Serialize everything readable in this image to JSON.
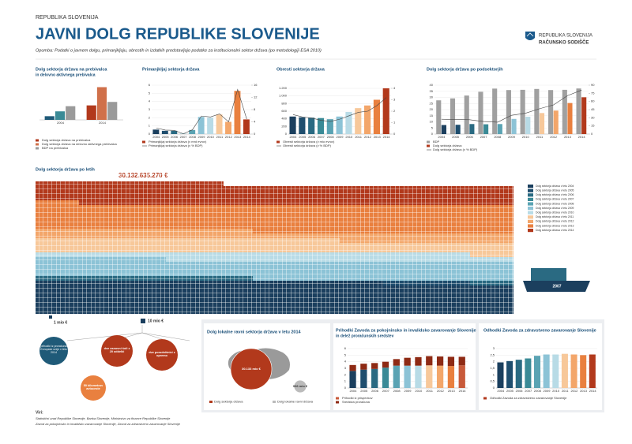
{
  "header": {
    "kicker": "REPUBLIKA SLOVENIJA",
    "title": "JAVNI DOLG REPUBLIKE SLOVENIJE",
    "note": "Opomba: Podatki o javnem dolgu, primanjkljaju, obrestih in izdatkih predstavljajo podatke za institucionalni sektor država (po metodologiji ESA 2010)",
    "org1": "REPUBLIKA SLOVENIJA",
    "org2": "RAČUNSKO SODIŠČE"
  },
  "chart_data": [
    {
      "type": "bar",
      "title": "Dolg sektorja država na prebivalca",
      "subtitle": "in delovno aktivnega prebivalca",
      "categories": [
        "2004",
        "2014"
      ],
      "ylim": [
        0,
        35000
      ],
      "series": [
        {
          "name": "Dolg sektorja država na prebivalca",
          "colors": [
            "#1f5a78",
            "#b2391c"
          ],
          "values": [
            3700,
            14600
          ]
        },
        {
          "name": "Dolg sektorja država na delovno aktivnega prebivalca",
          "colors": [
            "#3a8a96",
            "#d0704a"
          ],
          "values": [
            8600,
            33000
          ]
        },
        {
          "name": "BDP na prebivalca",
          "color": "#9a9a9a",
          "values": [
            13800,
            18100
          ]
        }
      ]
    },
    {
      "type": "bar",
      "title": "Primanjkljaj sektorja država",
      "categories": [
        "2004",
        "2005",
        "2006",
        "2007",
        "2008",
        "2009",
        "2010",
        "2011",
        "2012",
        "2013",
        "2014"
      ],
      "ylim": [
        0,
        6
      ],
      "yticks": [
        0,
        1,
        2,
        3,
        4,
        5,
        6
      ],
      "y2lim": [
        0,
        16
      ],
      "y2ticks": [
        0,
        4,
        8,
        12,
        16
      ],
      "series": [
        {
          "name": "Primanjkljaj sektorja država (v mrd evrov)",
          "colors": [
            "#1b3f5e",
            "#1f4e6e",
            "#2a6a82",
            "#3a8a96",
            "#5aa3b3",
            "#8cc3d6",
            "#b8dbe6",
            "#f7c89a",
            "#f3a66a",
            "#e9803f",
            "#b2391c"
          ],
          "values": [
            0.55,
            0.4,
            0.4,
            0.03,
            0.5,
            2.1,
            2.0,
            2.4,
            1.5,
            5.3,
            1.8
          ]
        },
        {
          "name": "Primanjkljaj sektorja država (v % BDP)",
          "type": "line",
          "axis": "y2",
          "color": "#444",
          "values": [
            2.0,
            1.3,
            1.2,
            0.1,
            1.4,
            5.9,
            5.6,
            6.6,
            4.0,
            14.6,
            4.9
          ]
        }
      ]
    },
    {
      "type": "bar",
      "title": "Obresti sektorja država",
      "categories": [
        "2004",
        "2005",
        "2006",
        "2007",
        "2008",
        "2009",
        "2010",
        "2011",
        "2012",
        "2013",
        "2014"
      ],
      "ylim": [
        0,
        1200
      ],
      "yticks": [
        0,
        200,
        400,
        600,
        800,
        {
          "value": 1000,
          "label": "1.000"
        },
        {
          "value": 1200,
          "label": "1.200"
        }
      ],
      "y2lim": [
        0,
        4
      ],
      "y2ticks": [
        0,
        1,
        2,
        3,
        4
      ],
      "series": [
        {
          "name": "Obresti sektorja država (v mio evrov)",
          "colors": [
            "#1b3f5e",
            "#1f4e6e",
            "#2a6a82",
            "#3a8a96",
            "#5aa3b3",
            "#8cc3d6",
            "#b8dbe6",
            "#f7c89a",
            "#f3a66a",
            "#e9803f",
            "#b2391c"
          ],
          "values": [
            460,
            440,
            430,
            420,
            390,
            460,
            580,
            680,
            750,
            900,
            1200
          ]
        },
        {
          "name": "Obresti sektorja država (v % BDP)",
          "type": "line",
          "axis": "y2",
          "color": "#444",
          "values": [
            1.7,
            1.5,
            1.4,
            1.2,
            1.1,
            1.3,
            1.6,
            1.9,
            2.0,
            2.5,
            3.2
          ]
        }
      ]
    },
    {
      "type": "bar",
      "title": "Dolg sektorja država po podsektorjih",
      "categories": [
        "2004",
        "2005",
        "2006",
        "2007",
        "2008",
        "2009",
        "2010",
        "2011",
        "2012",
        "2013",
        "2014"
      ],
      "ylim": [
        0,
        40
      ],
      "yticks": [
        0,
        5,
        10,
        15,
        20,
        25,
        30,
        35,
        40
      ],
      "y2lim": [
        0,
        90
      ],
      "y2ticks": [
        0,
        15,
        30,
        45,
        60,
        75,
        90
      ],
      "series": [
        {
          "name": "BDP",
          "color": "#a0a0a0",
          "values": [
            27.6,
            29.2,
            31.5,
            34.6,
            37.2,
            36.0,
            36.2,
            36.9,
            36.0,
            36.2,
            37.3
          ]
        },
        {
          "name": "Dolg sektorja država",
          "colors": [
            "#1b3f5e",
            "#1f4e6e",
            "#2a6a82",
            "#3a8a96",
            "#5aa3b3",
            "#8cc3d6",
            "#b8dbe6",
            "#f7c89a",
            "#f3a66a",
            "#e9803f",
            "#b2391c"
          ],
          "values": [
            7.4,
            7.6,
            8.2,
            8.0,
            8.2,
            12.4,
            14.2,
            17.2,
            19.2,
            25.4,
            30.1
          ]
        },
        {
          "name": "Dolg sektorja država (v % BDP)",
          "type": "line",
          "axis": "y2",
          "color": "#444",
          "values": [
            27.3,
            26.7,
            26.4,
            23.1,
            21.8,
            34.6,
            38.4,
            46.6,
            53.7,
            70.8,
            80.8
          ]
        }
      ]
    },
    {
      "type": "waffle",
      "title": "Dolg sektorja država po letih",
      "cell_value": 10000000,
      "cell_label": "10 mio €",
      "categories": [
        "Dolg sektorja država v letu 2004",
        "Dolg sektorja država v letu 2005",
        "Dolg sektorja država v letu 2006",
        "Dolg sektorja država v letu 2007",
        "Dolg sektorja država v letu 2008",
        "Dolg sektorja država v letu 2009",
        "Dolg sektorja država v letu 2010",
        "Dolg sektorja država v letu 2011",
        "Dolg sektorja država v letu 2012",
        "Dolg sektorja država v letu 2013",
        "Dolg sektorja država v letu 2014"
      ],
      "colors": [
        "#1b3f5e",
        "#1f4e6e",
        "#2a6a82",
        "#3a8a96",
        "#5aa3b3",
        "#8cc3d6",
        "#b8dbe6",
        "#f7c89a",
        "#f3a66a",
        "#e9803f",
        "#b2391c"
      ],
      "values": [
        7400000000,
        7600000000,
        8200000000,
        8000000000,
        8200000000,
        12400000000,
        14200000000,
        17200000000,
        19200000000,
        25400000000,
        30132635270
      ],
      "value_labels": [
        null,
        null,
        null,
        null,
        null,
        null,
        null,
        null,
        null,
        null,
        "30.132.635.270 €"
      ]
    },
    {
      "type": "bubble",
      "title": "Dolg lokalne ravni sektorja država v letu 2014",
      "categories": [
        "Dolg sektorja država",
        "Dolg lokalne ravni država"
      ],
      "colors": [
        "#b2391c",
        "#bbbbbb"
      ],
      "values": [
        30133,
        936
      ],
      "value_labels": [
        "30.133 mio €",
        "936 mio €"
      ]
    },
    {
      "type": "bar",
      "stacked": true,
      "title": "Prihodki Zavoda za pokojninsko in invalidsko zavarovanje Slovenije",
      "subtitle": "in delež proračunskih sredstev",
      "categories": [
        "2004",
        "2005",
        "2006",
        "2007",
        "2008",
        "2009",
        "2010",
        "2011",
        "2012",
        "2013",
        "2014"
      ],
      "ylim": [
        0,
        6
      ],
      "yticks": [
        0,
        1,
        2,
        3,
        4,
        5,
        6
      ],
      "series": [
        {
          "name": "Prihodki iz prispevkov",
          "colors": [
            "#1b3f5e",
            "#1f4e6e",
            "#2a6a82",
            "#3a8a96",
            "#5aa3b3",
            "#8cc3d6",
            "#b8dbe6",
            "#f7c89a",
            "#f3a66a",
            "#e9803f",
            "#c85a3a"
          ],
          "values": [
            2.6,
            2.8,
            2.9,
            3.1,
            3.4,
            3.4,
            3.4,
            3.45,
            3.4,
            3.35,
            3.45
          ]
        },
        {
          "name": "Sredstva proračuna",
          "color": "#8e2a14",
          "values": [
            0.9,
            0.9,
            0.9,
            0.9,
            1.0,
            1.2,
            1.3,
            1.4,
            1.4,
            1.4,
            1.3
          ]
        }
      ]
    },
    {
      "type": "bar",
      "title": "Odhodki Zavoda za zdravstveno zavarovanje Slovenije",
      "categories": [
        "2004",
        "2005",
        "2006",
        "2007",
        "2008",
        "2009",
        "2010",
        "2011",
        "2012",
        "2013",
        "2014"
      ],
      "ylim": [
        0,
        3
      ],
      "yticks": [
        0,
        {
          "value": 0.5,
          "label": "0,5"
        },
        1,
        {
          "value": 1.5,
          "label": "1,5"
        },
        2,
        {
          "value": 2.5,
          "label": "2,5"
        },
        3
      ],
      "series": [
        {
          "name": "Odhodki Zavoda za zdravstveno zavarovanje Slovenije",
          "colors": [
            "#1b3f5e",
            "#1f4e6e",
            "#2a6a82",
            "#3a8a96",
            "#5aa3b3",
            "#8cc3d6",
            "#b8dbe6",
            "#f7c89a",
            "#f3a66a",
            "#e9803f",
            "#b2391c"
          ],
          "values": [
            1.95,
            2.05,
            2.15,
            2.25,
            2.45,
            2.55,
            2.55,
            2.6,
            2.55,
            2.5,
            2.55
          ]
        }
      ]
    }
  ],
  "infographic": {
    "unit_small": "1 mio €",
    "marker_label": "2007",
    "items": [
      "prihodki iz proračuna Evropske unije v letu 2014",
      "dve osnovni šoli z 20 oddelki",
      "dve porodnišnici z opremo",
      "50 kilometrov avtoceste"
    ]
  },
  "footer": {
    "heading": "Viri:",
    "lines": [
      "Statistični urad Republike Slovenije, Banka Slovenije, Ministrstvo za finance Republike Slovenije",
      "Zavod za pokojninsko in invalidsko zavarovanje Slovenije, Zavod za zdravstveno zavarovanje Slovenije"
    ]
  }
}
